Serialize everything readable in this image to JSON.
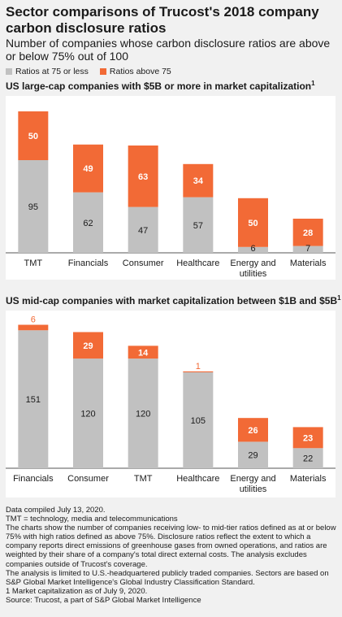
{
  "title": "Sector comparisons of Trucost's 2018 company carbon disclosure ratios",
  "subtitle": "Number of companies whose carbon disclosure ratios are above or below 75% out of 100",
  "legend": {
    "low": {
      "label": "Ratios at 75 or less",
      "color": "#c1c1c1"
    },
    "high": {
      "label": "Ratios above 75",
      "color": "#f26a36"
    }
  },
  "colors": {
    "low": "#c1c1c1",
    "high": "#f26a36",
    "axis": "#555555"
  },
  "chart_data": [
    {
      "type": "bar",
      "stacked": true,
      "title": "US large-cap companies with $5B or more in market capitalization",
      "title_footnote": "1",
      "categories": [
        "TMT",
        "Financials",
        "Consumer",
        "Healthcare",
        "Energy and utilities",
        "Materials"
      ],
      "series": [
        {
          "name": "Ratios at 75 or less",
          "values": [
            95,
            62,
            47,
            57,
            6,
            7
          ]
        },
        {
          "name": "Ratios above 75",
          "values": [
            50,
            49,
            63,
            34,
            50,
            28
          ]
        }
      ],
      "ylim": [
        0,
        150
      ],
      "grid": false
    },
    {
      "type": "bar",
      "stacked": true,
      "title": "US mid-cap companies with market capitalization between $1B and $5B",
      "title_footnote": "1",
      "categories": [
        "Financials",
        "Consumer",
        "TMT",
        "Healthcare",
        "Energy and utilities",
        "Materials"
      ],
      "series": [
        {
          "name": "Ratios at 75 or less",
          "values": [
            151,
            120,
            120,
            105,
            29,
            22
          ]
        },
        {
          "name": "Ratios above 75",
          "values": [
            6,
            29,
            14,
            1,
            26,
            23
          ]
        }
      ],
      "ylim": [
        0,
        160
      ],
      "grid": false
    }
  ],
  "notes": [
    "Data compiled July 13, 2020.",
    "TMT = technology, media and telecommunications",
    "The charts show the number of companies receiving low- to mid-tier ratios defined as at or below 75% with high ratios defined as above 75%. Disclosure ratios reflect the extent to which a company reports direct emissions of greenhouse gases from owned operations, and ratios are weighted by their share of a company's total direct external costs. The analysis excludes companies outside of Trucost's coverage.",
    "The analysis is limited to U.S.-headquartered publicly traded companies. Sectors are based on S&P Global Market Intelligence's Global Industry Classification Standard.",
    "1 Market capitalization as of July 9, 2020.",
    "Source: Trucost, a part of S&P Global Market Intelligence"
  ]
}
